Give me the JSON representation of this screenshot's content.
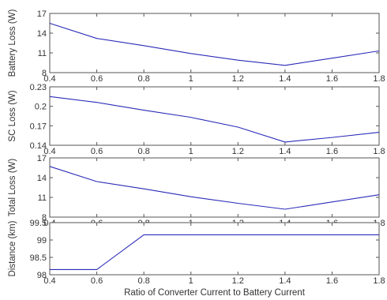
{
  "chart_data": [
    {
      "type": "line",
      "ylabel": "Battery Loss (W)",
      "xlabel": "",
      "xlim": [
        0.4,
        1.8
      ],
      "ylim": [
        8,
        17
      ],
      "xticks": [
        "0.4",
        "0.6",
        "0.8",
        "1",
        "1.2",
        "1.4",
        "1.6",
        "1.8"
      ],
      "yticks": [
        "8",
        "11",
        "14",
        "17"
      ],
      "grid": false,
      "x": [
        0.4,
        0.6,
        0.8,
        1.0,
        1.2,
        1.4,
        1.6,
        1.8
      ],
      "series": [
        {
          "values": [
            15.5,
            13.2,
            12.1,
            10.9,
            9.9,
            9.1,
            10.2,
            11.3
          ],
          "color": "#2b2bb8"
        }
      ]
    },
    {
      "type": "line",
      "ylabel": "SC Loss (W)",
      "xlabel": "",
      "xlim": [
        0.4,
        1.8
      ],
      "ylim": [
        0.14,
        0.23
      ],
      "xticks": [
        "0.4",
        "0.6",
        "0.8",
        "1",
        "1.2",
        "1.4",
        "1.6",
        "1.8"
      ],
      "yticks": [
        "0.14",
        "0.17",
        "0.2",
        "0.23"
      ],
      "grid": false,
      "x": [
        0.4,
        0.6,
        0.8,
        1.0,
        1.2,
        1.4,
        1.6,
        1.8
      ],
      "series": [
        {
          "values": [
            0.215,
            0.206,
            0.194,
            0.183,
            0.168,
            0.145,
            0.152,
            0.16
          ],
          "color": "#2b2bb8"
        }
      ]
    },
    {
      "type": "line",
      "ylabel": "Total Loss (W)",
      "xlabel": "",
      "xlim": [
        0.4,
        1.8
      ],
      "ylim": [
        8,
        17
      ],
      "xticks": [
        "0.4",
        "0.6",
        "0.8",
        "1",
        "1.2",
        "1.4",
        "1.6",
        "1.8"
      ],
      "yticks": [
        "8",
        "11",
        "14",
        "17"
      ],
      "grid": false,
      "x": [
        0.4,
        0.6,
        0.8,
        1.0,
        1.2,
        1.4,
        1.6,
        1.8
      ],
      "series": [
        {
          "values": [
            15.7,
            13.4,
            12.3,
            11.1,
            10.1,
            9.2,
            10.3,
            11.4
          ],
          "color": "#2b2bb8"
        }
      ]
    },
    {
      "type": "line",
      "ylabel": "Distance (km)",
      "xlabel": "Ratio of Converter Current to Battery Current",
      "xlim": [
        0.4,
        1.8
      ],
      "ylim": [
        98,
        99.5
      ],
      "xticks": [
        "0.4",
        "0.6",
        "0.8",
        "1",
        "1.2",
        "1.4",
        "1.6",
        "1.8"
      ],
      "yticks": [
        "98",
        "98.5",
        "99",
        "99.5"
      ],
      "grid": false,
      "x": [
        0.4,
        0.6,
        0.8,
        1.0,
        1.2,
        1.4,
        1.6,
        1.8
      ],
      "series": [
        {
          "values": [
            98.15,
            98.15,
            99.15,
            99.15,
            99.15,
            99.15,
            99.15,
            99.15
          ],
          "color": "#2b2bb8"
        }
      ]
    }
  ]
}
